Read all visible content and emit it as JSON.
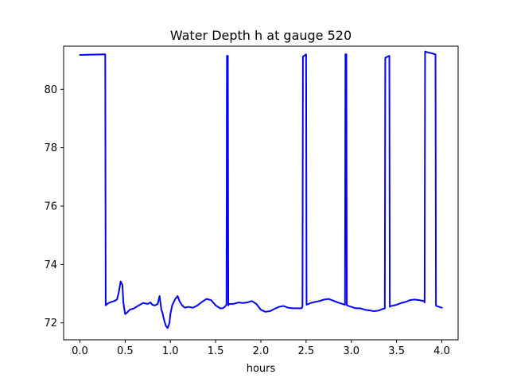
{
  "chart_data": {
    "type": "line",
    "title": "Water Depth h at gauge 520",
    "xlabel": "hours",
    "ylabel": "",
    "xlim": [
      -0.18,
      4.18
    ],
    "ylim": [
      71.42,
      81.48
    ],
    "x_ticks": [
      {
        "value": 0.0,
        "label": "0.0"
      },
      {
        "value": 0.5,
        "label": "0.5"
      },
      {
        "value": 1.0,
        "label": "1.0"
      },
      {
        "value": 1.5,
        "label": "1.5"
      },
      {
        "value": 2.0,
        "label": "2.0"
      },
      {
        "value": 2.5,
        "label": "2.5"
      },
      {
        "value": 3.0,
        "label": "3.0"
      },
      {
        "value": 3.5,
        "label": "3.5"
      },
      {
        "value": 4.0,
        "label": "4.0"
      }
    ],
    "y_ticks": [
      {
        "value": 72,
        "label": "72"
      },
      {
        "value": 74,
        "label": "74"
      },
      {
        "value": 76,
        "label": "76"
      },
      {
        "value": 78,
        "label": "78"
      },
      {
        "value": 80,
        "label": "80"
      }
    ],
    "grid": false,
    "series": [
      {
        "color": "#0000ff",
        "x": [
          0.0,
          0.28,
          0.285,
          0.3,
          0.33,
          0.38,
          0.41,
          0.43,
          0.45,
          0.47,
          0.48,
          0.5,
          0.52,
          0.55,
          0.6,
          0.65,
          0.7,
          0.75,
          0.78,
          0.8,
          0.83,
          0.86,
          0.88,
          0.89,
          0.9,
          0.91,
          0.93,
          0.95,
          0.97,
          0.99,
          1.0,
          1.02,
          1.05,
          1.08,
          1.1,
          1.13,
          1.16,
          1.2,
          1.25,
          1.3,
          1.35,
          1.4,
          1.45,
          1.5,
          1.55,
          1.58,
          1.6,
          1.62,
          1.625,
          1.635,
          1.64,
          1.65,
          1.7,
          1.75,
          1.8,
          1.85,
          1.9,
          1.95,
          2.0,
          2.05,
          2.1,
          2.15,
          2.2,
          2.25,
          2.3,
          2.35,
          2.4,
          2.45,
          2.46,
          2.465,
          2.5,
          2.505,
          2.51,
          2.55,
          2.6,
          2.65,
          2.7,
          2.75,
          2.8,
          2.85,
          2.9,
          2.93,
          2.935,
          2.945,
          2.95,
          3.0,
          3.05,
          3.1,
          3.15,
          3.2,
          3.25,
          3.3,
          3.35,
          3.37,
          3.375,
          3.42,
          3.425,
          3.43,
          3.5,
          3.55,
          3.6,
          3.65,
          3.7,
          3.75,
          3.8,
          3.81,
          3.815,
          3.83,
          3.93,
          3.935,
          3.94,
          4.0
        ],
        "y": [
          81.18,
          81.2,
          72.6,
          72.65,
          72.7,
          72.75,
          72.8,
          73.05,
          73.42,
          73.3,
          72.7,
          72.3,
          72.35,
          72.45,
          72.5,
          72.6,
          72.68,
          72.65,
          72.7,
          72.62,
          72.6,
          72.65,
          72.92,
          72.7,
          72.45,
          72.38,
          72.1,
          71.9,
          71.82,
          72.0,
          72.3,
          72.6,
          72.8,
          72.92,
          72.75,
          72.6,
          72.52,
          72.55,
          72.52,
          72.6,
          72.72,
          72.82,
          72.78,
          72.6,
          72.5,
          72.5,
          72.55,
          72.62,
          81.15,
          81.15,
          72.6,
          72.65,
          72.65,
          72.7,
          72.68,
          72.7,
          72.75,
          72.65,
          72.45,
          72.38,
          72.4,
          72.48,
          72.55,
          72.58,
          72.52,
          72.5,
          72.5,
          72.5,
          72.55,
          81.12,
          81.2,
          72.62,
          72.63,
          72.68,
          72.72,
          72.75,
          72.8,
          72.82,
          72.76,
          72.7,
          72.65,
          72.62,
          81.2,
          81.2,
          72.6,
          72.55,
          72.5,
          72.5,
          72.45,
          72.43,
          72.4,
          72.42,
          72.48,
          72.5,
          81.08,
          81.15,
          72.55,
          72.57,
          72.62,
          72.68,
          72.72,
          72.78,
          72.8,
          72.78,
          72.75,
          72.7,
          81.3,
          81.28,
          81.2,
          72.6,
          72.58,
          72.52
        ]
      }
    ]
  }
}
